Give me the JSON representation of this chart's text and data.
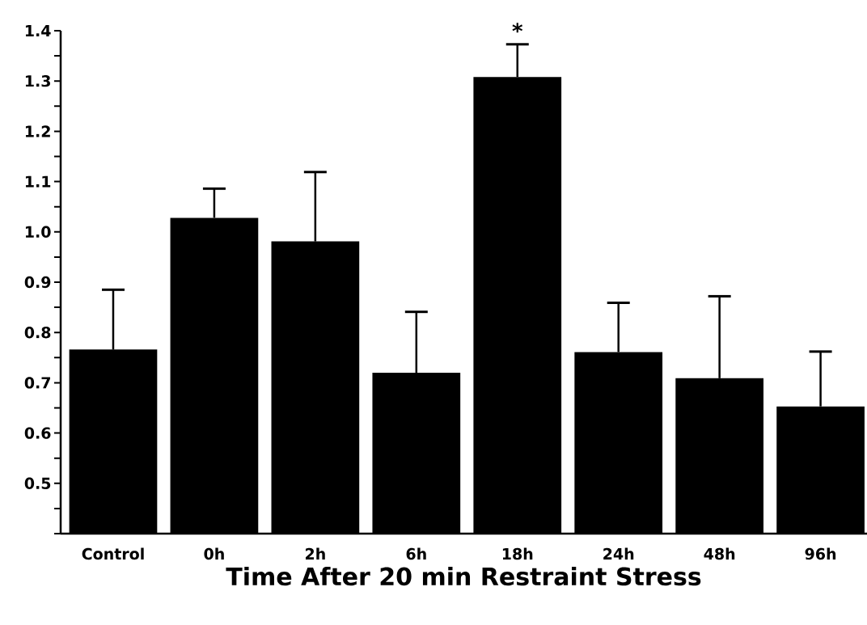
{
  "chart_data": {
    "type": "bar",
    "xlabel": "Time After 20 min Restraint Stress",
    "categories": [
      "Control",
      "0h",
      "2h",
      "6h",
      "18h",
      "24h",
      "48h",
      "96h"
    ],
    "values": [
      0.766,
      1.028,
      0.981,
      0.72,
      1.308,
      0.761,
      0.709,
      0.653
    ],
    "errors": [
      0.119,
      0.058,
      0.138,
      0.121,
      0.065,
      0.098,
      0.163,
      0.109
    ],
    "color": "#000000",
    "ylim": [
      0.4,
      1.4
    ],
    "yticks": [
      {
        "value": 0.4,
        "label": null
      },
      {
        "value": 0.45,
        "label": null
      },
      0.5,
      {
        "value": 0.55,
        "label": null
      },
      0.6,
      {
        "value": 0.65,
        "label": null
      },
      0.7,
      {
        "value": 0.75,
        "label": null
      },
      0.8,
      {
        "value": 0.85,
        "label": null
      },
      0.9,
      {
        "value": 0.95,
        "label": null
      },
      {
        "value": 1.0,
        "label": "1.0"
      },
      {
        "value": 1.05,
        "label": null
      },
      1.1,
      {
        "value": 1.15,
        "label": null
      },
      1.2,
      {
        "value": 1.25,
        "label": null
      },
      1.3,
      {
        "value": 1.35,
        "label": null
      },
      1.4
    ],
    "annotations": [
      "*"
    ]
  }
}
